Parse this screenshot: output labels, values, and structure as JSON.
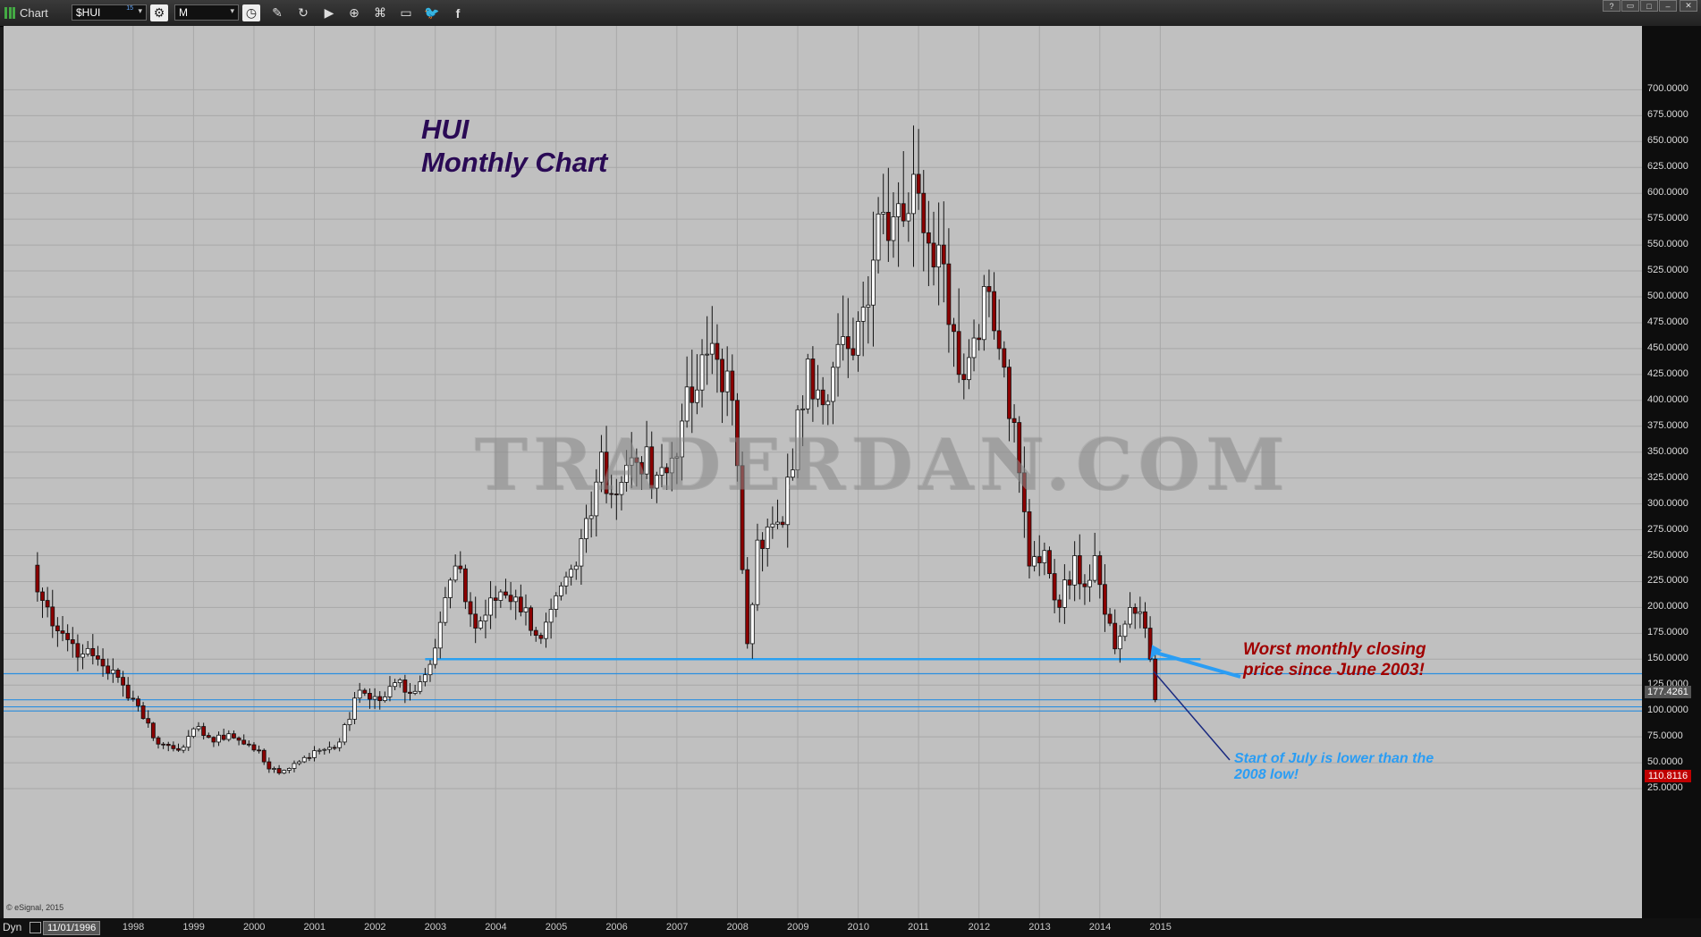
{
  "toolbar": {
    "app_title": "Chart",
    "symbol": "$HUI",
    "symbol_superscript": "15",
    "interval": "M",
    "icons": [
      "settings-icon",
      "clock-icon",
      "pencil-icon",
      "refresh-icon",
      "play-icon",
      "zoom-icon",
      "link-icon",
      "comment-icon",
      "twitter-icon",
      "facebook-icon"
    ],
    "window_buttons": [
      "?",
      "▭",
      "□",
      "–",
      "□",
      "✕"
    ]
  },
  "status": {
    "mode": "Dyn",
    "start_date": "11/01/1996"
  },
  "copyright": "© eSignal, 2015",
  "watermark": "TRADERDAN.COM",
  "chart_data": {
    "type": "candlestick",
    "title": [
      "HUI",
      "Monthly Chart"
    ],
    "ylim": [
      0,
      710
    ],
    "y_ticks": [
      "25.0000",
      "50.0000",
      "75.0000",
      "100.0000",
      "125.0000",
      "150.0000",
      "175.0000",
      "200.0000",
      "225.0000",
      "250.0000",
      "275.0000",
      "300.0000",
      "325.0000",
      "350.0000",
      "375.0000",
      "400.0000",
      "425.0000",
      "450.0000",
      "475.0000",
      "500.0000",
      "525.0000",
      "550.0000",
      "575.0000",
      "600.0000",
      "625.0000",
      "650.0000",
      "675.0000",
      "700.0000"
    ],
    "x_ticks": [
      "1998",
      "1999",
      "2000",
      "2001",
      "2002",
      "2003",
      "2004",
      "2005",
      "2006",
      "2007",
      "2008",
      "2009",
      "2010",
      "2011",
      "2012",
      "2013",
      "2014",
      "2015"
    ],
    "last_price_label": "110.8116",
    "ref_price_label": "177.4261",
    "horizontal_lines": [
      {
        "y": 150,
        "x_start": "2003-05",
        "x_end": "2016-03",
        "color": "#2aa0f0"
      },
      {
        "y": 136,
        "color": "#2a8ee0"
      },
      {
        "y": 110.8,
        "color": "#2a8ee0"
      },
      {
        "y": 104,
        "color": "#2a8ee0"
      },
      {
        "y": 100,
        "color": "#2a8ee0"
      }
    ],
    "annotations": [
      {
        "text": [
          "Worst monthly closing",
          "price since June 2003!"
        ],
        "color": "#a00000"
      },
      {
        "text": [
          "Start of July is lower than the",
          "2008 low!"
        ],
        "color": "#2a9df4"
      }
    ],
    "colors": {
      "up": "#ffffff",
      "down": "#8b0000",
      "background": "#c0c0c0",
      "grid": "#a8a8a8"
    },
    "anchors": [
      [
        "1997-01",
        215
      ],
      [
        "1997-06",
        175
      ],
      [
        "1997-10",
        155
      ],
      [
        "1998-01",
        150
      ],
      [
        "1998-06",
        125
      ],
      [
        "1998-09",
        105
      ],
      [
        "1999-01",
        68
      ],
      [
        "1999-06",
        65
      ],
      [
        "1999-09",
        85
      ],
      [
        "1999-12",
        70
      ],
      [
        "2000-03",
        78
      ],
      [
        "2000-06",
        68
      ],
      [
        "2000-09",
        62
      ],
      [
        "2000-11",
        44
      ],
      [
        "2001-01",
        40
      ],
      [
        "2001-06",
        55
      ],
      [
        "2001-09",
        62
      ],
      [
        "2002-01",
        70
      ],
      [
        "2002-05",
        120
      ],
      [
        "2002-09",
        110
      ],
      [
        "2003-01",
        130
      ],
      [
        "2003-03",
        117
      ],
      [
        "2003-06",
        135
      ],
      [
        "2003-12",
        240
      ],
      [
        "2004-04",
        180
      ],
      [
        "2004-09",
        215
      ],
      [
        "2004-12",
        210
      ],
      [
        "2005-05",
        170
      ],
      [
        "2005-12",
        240
      ],
      [
        "2006-05",
        350
      ],
      [
        "2006-06",
        310
      ],
      [
        "2006-12",
        340
      ],
      [
        "2007-06",
        330
      ],
      [
        "2007-09",
        380
      ],
      [
        "2007-12",
        410
      ],
      [
        "2008-03",
        455
      ],
      [
        "2008-07",
        400
      ],
      [
        "2008-10",
        165
      ],
      [
        "2008-12",
        265
      ],
      [
        "2009-05",
        280
      ],
      [
        "2009-10",
        440
      ],
      [
        "2009-12",
        410
      ],
      [
        "2010-06",
        450
      ],
      [
        "2010-09",
        490
      ],
      [
        "2010-12",
        580
      ],
      [
        "2011-04",
        590
      ],
      [
        "2011-08",
        600
      ],
      [
        "2011-12",
        550
      ],
      [
        "2012-05",
        420
      ],
      [
        "2012-09",
        510
      ],
      [
        "2012-12",
        450
      ],
      [
        "2013-04",
        330
      ],
      [
        "2013-06",
        240
      ],
      [
        "2013-09",
        255
      ],
      [
        "2013-12",
        200
      ],
      [
        "2014-03",
        250
      ],
      [
        "2014-05",
        220
      ],
      [
        "2014-07",
        250
      ],
      [
        "2014-11",
        160
      ],
      [
        "2015-02",
        200
      ],
      [
        "2015-05",
        180
      ],
      [
        "2015-06",
        150
      ],
      [
        "2015-07",
        111
      ]
    ]
  }
}
